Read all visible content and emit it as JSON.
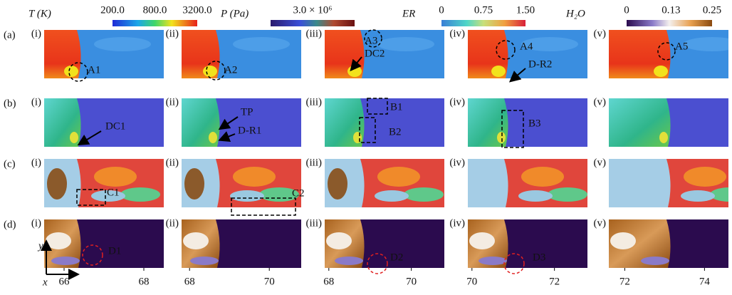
{
  "colorbars": [
    {
      "label": "T (K)",
      "log": true,
      "clim": [
        200,
        3200
      ],
      "ticks": [
        {
          "value": 200,
          "label": "200.0"
        },
        {
          "value": 800,
          "label": "800.0"
        },
        {
          "value": 3200,
          "label": "3200.0"
        }
      ]
    },
    {
      "label": "P (Pa)",
      "ticks": [
        {
          "value": 3000000,
          "label": "3.0 × 10⁶"
        }
      ]
    },
    {
      "label": "ER",
      "clim": [
        0,
        1.5
      ],
      "ticks": [
        0,
        0.75,
        {
          "value": 1.5,
          "label": "1.50"
        }
      ]
    },
    {
      "label": "H₂O",
      "clim": [
        0,
        0.25
      ],
      "ticks": [
        0,
        0.13,
        0.25
      ]
    }
  ],
  "rows": [
    {
      "label": "(a)",
      "annotations": [
        "A1",
        "A2",
        "A3",
        "DC2",
        "A4",
        "D-R2",
        "A5"
      ]
    },
    {
      "label": "(b)",
      "annotations": [
        "DC1",
        "TP",
        "D-R1",
        "B1",
        "B2",
        "B3"
      ]
    },
    {
      "label": "(c)",
      "annotations": [
        "C1",
        "C2"
      ]
    },
    {
      "label": "(d)",
      "annotations": [
        "D1",
        "D2",
        "D3"
      ]
    }
  ],
  "columns": [
    {
      "label": "(i)",
      "xlim": [
        65.5,
        68.5
      ],
      "xticks": [
        66,
        68
      ]
    },
    {
      "label": "(ii)",
      "xlim": [
        67.8,
        70.8
      ],
      "xticks": [
        68,
        70
      ]
    },
    {
      "label": "(iii)",
      "xlim": [
        67.9,
        70.8
      ],
      "xticks": [
        68,
        70
      ]
    },
    {
      "label": "(iv)",
      "xlim": [
        69.9,
        72.8
      ],
      "xticks": [
        70,
        72
      ]
    },
    {
      "label": "(v)",
      "xlim": [
        71.6,
        74.6
      ],
      "xticks": [
        72,
        74
      ]
    }
  ],
  "axes": {
    "x": "x",
    "y": "y"
  }
}
